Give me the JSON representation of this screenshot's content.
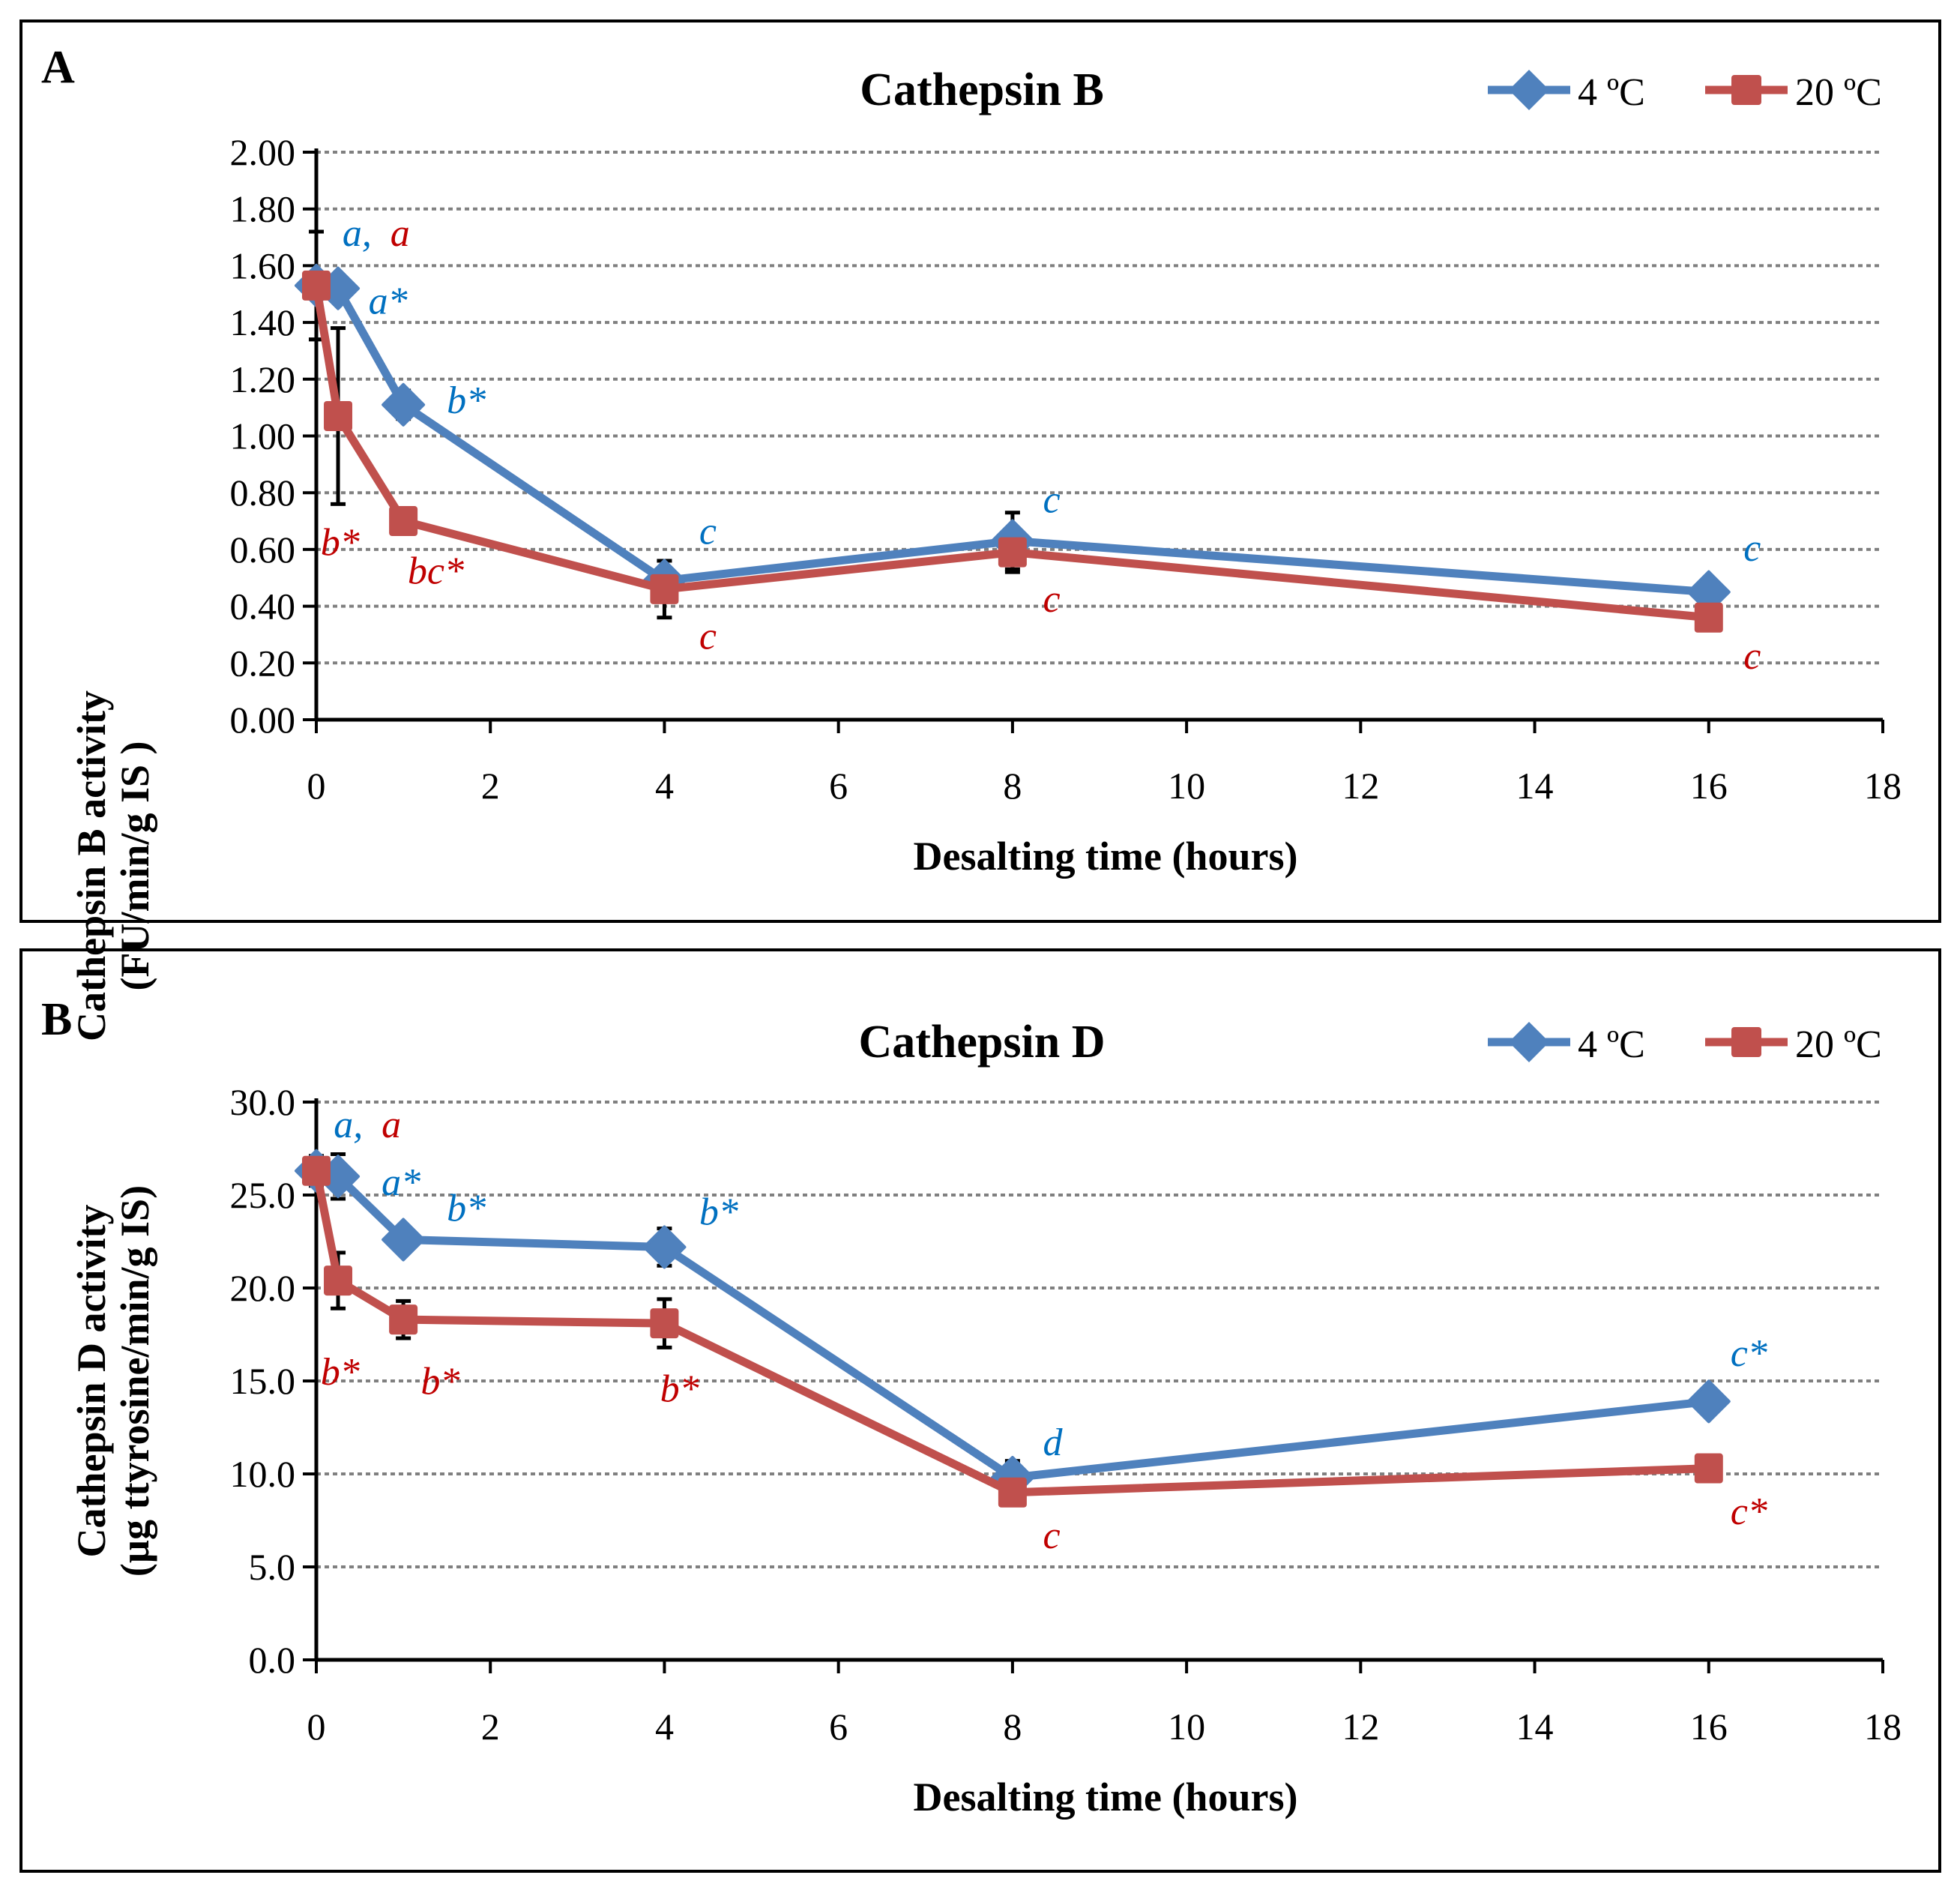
{
  "colors": {
    "s4": "#4f81bd",
    "s20": "#c0504d",
    "ann4": "#0070c0",
    "ann20": "#c00000",
    "grid": "#808080"
  },
  "chart_data": [
    {
      "panel": "A",
      "type": "line",
      "title": "Cathepsin B",
      "xlabel": "Desalting time (hours)",
      "ylabel": [
        "Cathepsin B activity",
        "(FU/min/g IS )"
      ],
      "xlim": [
        0,
        18
      ],
      "xticks": [
        0,
        2,
        4,
        6,
        8,
        10,
        12,
        14,
        16,
        18
      ],
      "ylim": [
        0,
        2
      ],
      "yticks": [
        "0.00",
        "0.20",
        "0.40",
        "0.60",
        "0.80",
        "1.00",
        "1.20",
        "1.40",
        "1.60",
        "1.80",
        "2.00"
      ],
      "grid": "horizontal dotted",
      "legend_position": "top-right",
      "x": [
        0,
        0.25,
        1,
        4,
        8,
        16
      ],
      "series": [
        {
          "name": "4 ºC",
          "marker": "diamond",
          "values": [
            1.53,
            1.52,
            1.11,
            0.49,
            0.63,
            0.45
          ],
          "errors": [
            0.19,
            0.04,
            0.05,
            0.07,
            0.1,
            0.03
          ]
        },
        {
          "name": "20 ºC",
          "marker": "square",
          "values": [
            1.53,
            1.07,
            0.7,
            0.46,
            0.59,
            0.36
          ],
          "errors": [
            0.19,
            0.31,
            0.03,
            0.1,
            0.07,
            0.03
          ]
        }
      ],
      "annotations": [
        {
          "text": "a,",
          "series": 0,
          "x": 0.3,
          "y": 1.67
        },
        {
          "text": "a",
          "series": 1,
          "x": 0.85,
          "y": 1.67
        },
        {
          "text": "a*",
          "series": 0,
          "x": 0.6,
          "y": 1.43
        },
        {
          "text": "b*",
          "series": 0,
          "x": 1.5,
          "y": 1.08
        },
        {
          "text": "b*",
          "series": 1,
          "x": 0.05,
          "y": 0.58
        },
        {
          "text": "bc*",
          "series": 1,
          "x": 1.05,
          "y": 0.48
        },
        {
          "text": "c",
          "series": 0,
          "x": 4.4,
          "y": 0.62
        },
        {
          "text": "c",
          "series": 1,
          "x": 4.4,
          "y": 0.25
        },
        {
          "text": "c",
          "series": 0,
          "x": 8.35,
          "y": 0.73
        },
        {
          "text": "c",
          "series": 1,
          "x": 8.35,
          "y": 0.38
        },
        {
          "text": "c",
          "series": 0,
          "x": 16.4,
          "y": 0.56
        },
        {
          "text": "c",
          "series": 1,
          "x": 16.4,
          "y": 0.18
        }
      ]
    },
    {
      "panel": "B",
      "type": "line",
      "title": "Cathepsin D",
      "xlabel": "Desalting time (hours)",
      "ylabel": [
        "Cathepsin D activity",
        "(µg ttyrosine/min/g IS)"
      ],
      "xlim": [
        0,
        18
      ],
      "xticks": [
        0,
        2,
        4,
        6,
        8,
        10,
        12,
        14,
        16,
        18
      ],
      "ylim": [
        0,
        30
      ],
      "yticks": [
        "0.0",
        "5.0",
        "10.0",
        "15.0",
        "20.0",
        "25.0",
        "30.0"
      ],
      "grid": "horizontal dotted",
      "legend_position": "top-right",
      "x": [
        0,
        0.25,
        1,
        4,
        8,
        16
      ],
      "series": [
        {
          "name": "4 ºC",
          "marker": "diamond",
          "values": [
            26.3,
            26.0,
            22.6,
            22.2,
            9.8,
            13.9
          ],
          "errors": [
            0.8,
            1.2,
            0.3,
            1.0,
            0.9,
            0.3
          ]
        },
        {
          "name": "20 ºC",
          "marker": "square",
          "values": [
            26.3,
            20.4,
            18.3,
            18.1,
            9.0,
            10.3
          ],
          "errors": [
            0.8,
            1.5,
            1.0,
            1.3,
            0.5,
            0.3
          ]
        }
      ],
      "annotations": [
        {
          "text": "a,",
          "series": 0,
          "x": 0.2,
          "y": 28.1
        },
        {
          "text": "a",
          "series": 1,
          "x": 0.75,
          "y": 28.1
        },
        {
          "text": "a*",
          "series": 0,
          "x": 0.75,
          "y": 25.0
        },
        {
          "text": "b*",
          "series": 0,
          "x": 1.5,
          "y": 23.6
        },
        {
          "text": "b*",
          "series": 0,
          "x": 4.4,
          "y": 23.4
        },
        {
          "text": "b*",
          "series": 1,
          "x": 0.05,
          "y": 14.8
        },
        {
          "text": "b*",
          "series": 1,
          "x": 1.2,
          "y": 14.3
        },
        {
          "text": "b*",
          "series": 1,
          "x": 3.95,
          "y": 13.9
        },
        {
          "text": "d",
          "series": 0,
          "x": 8.35,
          "y": 11.0
        },
        {
          "text": "c",
          "series": 1,
          "x": 8.35,
          "y": 6.0
        },
        {
          "text": "c*",
          "series": 0,
          "x": 16.25,
          "y": 15.8
        },
        {
          "text": "c*",
          "series": 1,
          "x": 16.25,
          "y": 7.3
        }
      ]
    }
  ]
}
